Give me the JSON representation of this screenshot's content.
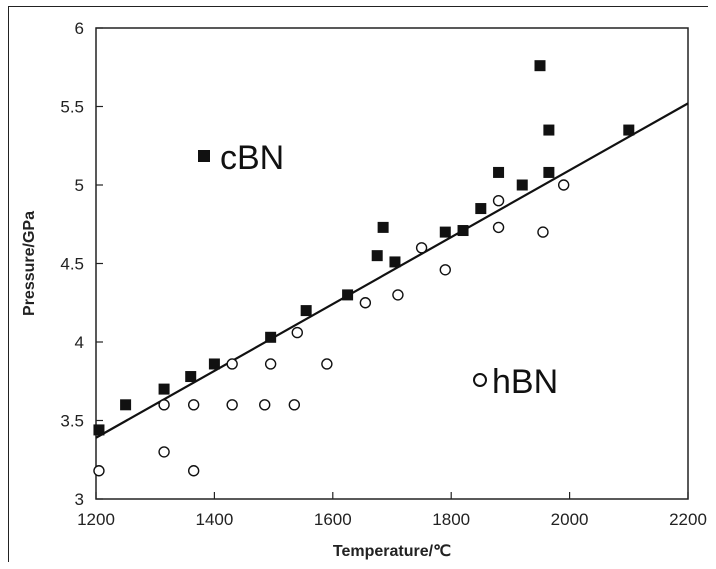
{
  "chart_data": {
    "type": "scatter",
    "title": "",
    "xlabel": "Temperature/℃",
    "ylabel": "Pressure/GPa",
    "xlim": [
      1200,
      2200
    ],
    "ylim": [
      3,
      6
    ],
    "xticks": [
      "1200",
      "1400",
      "1600",
      "1800",
      "2000",
      "2200"
    ],
    "yticks": [
      "3",
      "3.5",
      "4",
      "4.5",
      "5",
      "5.5",
      "6"
    ],
    "grid": false,
    "legend": "inside",
    "series": [
      {
        "name": "cBN",
        "marker": "filled-square",
        "color": "#111111",
        "points": [
          [
            1205,
            3.44
          ],
          [
            1250,
            3.6
          ],
          [
            1315,
            3.7
          ],
          [
            1360,
            3.78
          ],
          [
            1400,
            3.86
          ],
          [
            1495,
            4.03
          ],
          [
            1555,
            4.2
          ],
          [
            1625,
            4.3
          ],
          [
            1675,
            4.55
          ],
          [
            1685,
            4.73
          ],
          [
            1705,
            4.51
          ],
          [
            1790,
            4.7
          ],
          [
            1820,
            4.71
          ],
          [
            1850,
            4.85
          ],
          [
            1880,
            5.08
          ],
          [
            1920,
            5.0
          ],
          [
            1950,
            5.76
          ],
          [
            1965,
            5.35
          ],
          [
            1965,
            5.08
          ],
          [
            2100,
            5.35
          ]
        ]
      },
      {
        "name": "hBN",
        "marker": "open-circle",
        "color": "#111111",
        "points": [
          [
            1205,
            3.18
          ],
          [
            1315,
            3.3
          ],
          [
            1315,
            3.6
          ],
          [
            1365,
            3.6
          ],
          [
            1365,
            3.18
          ],
          [
            1430,
            3.86
          ],
          [
            1430,
            3.6
          ],
          [
            1485,
            3.6
          ],
          [
            1495,
            3.86
          ],
          [
            1535,
            3.6
          ],
          [
            1540,
            4.06
          ],
          [
            1590,
            3.86
          ],
          [
            1655,
            4.25
          ],
          [
            1710,
            4.3
          ],
          [
            1750,
            4.6
          ],
          [
            1790,
            4.46
          ],
          [
            1880,
            4.73
          ],
          [
            1880,
            4.9
          ],
          [
            1955,
            4.7
          ],
          [
            1990,
            5.0
          ]
        ]
      }
    ],
    "fit_line": {
      "x": [
        1200,
        2200
      ],
      "y": [
        3.39,
        5.52
      ]
    }
  },
  "legend": {
    "cbn_label": "cBN",
    "hbn_label": "hBN"
  }
}
